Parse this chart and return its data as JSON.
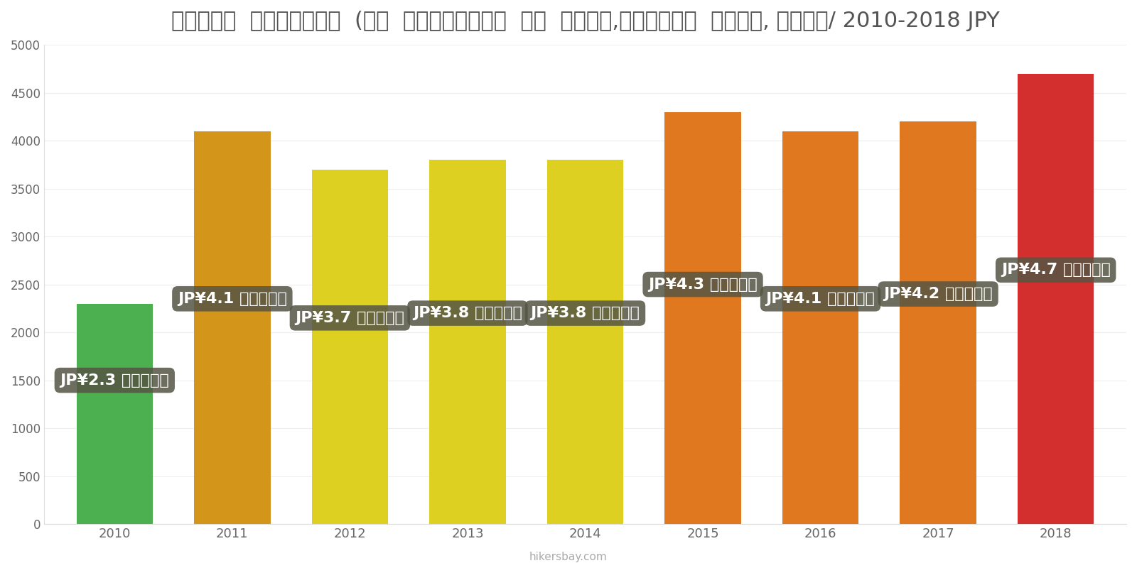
{
  "title": "जापान  इंटरनेट  (२०  एमबीपीएस  या  अधिक,असीमित  डेटा, केबल/ 2010-2018 JPY",
  "years": [
    2010,
    2011,
    2012,
    2013,
    2014,
    2015,
    2016,
    2017,
    2018
  ],
  "values": [
    2300,
    4100,
    3700,
    3800,
    3800,
    4300,
    4100,
    4200,
    4700
  ],
  "bar_colors": [
    "#4caf50",
    "#d4961a",
    "#ddd020",
    "#ddd020",
    "#ddd020",
    "#e07820",
    "#e07820",
    "#e07820",
    "#d32f2f"
  ],
  "labels": [
    "JP¥2.3 हज़ार",
    "JP¥4.1 हज़ार",
    "JP¥3.7 हज़ार",
    "JP¥3.8 हज़ार",
    "JP¥3.8 हज़ार",
    "JP¥4.3 हज़ार",
    "JP¥4.1 हज़ार",
    "JP¥4.2 हज़ार",
    "JP¥4.7 हज़ार"
  ],
  "label_y_values": [
    1500,
    2350,
    2150,
    2200,
    2200,
    2500,
    2350,
    2400,
    2650
  ],
  "ylim": [
    0,
    5000
  ],
  "yticks": [
    0,
    500,
    1000,
    1500,
    2000,
    2500,
    3000,
    3500,
    4000,
    4500,
    5000
  ],
  "background_color": "#ffffff",
  "footer": "hikersbay.com",
  "title_fontsize": 22,
  "label_fontsize": 16
}
